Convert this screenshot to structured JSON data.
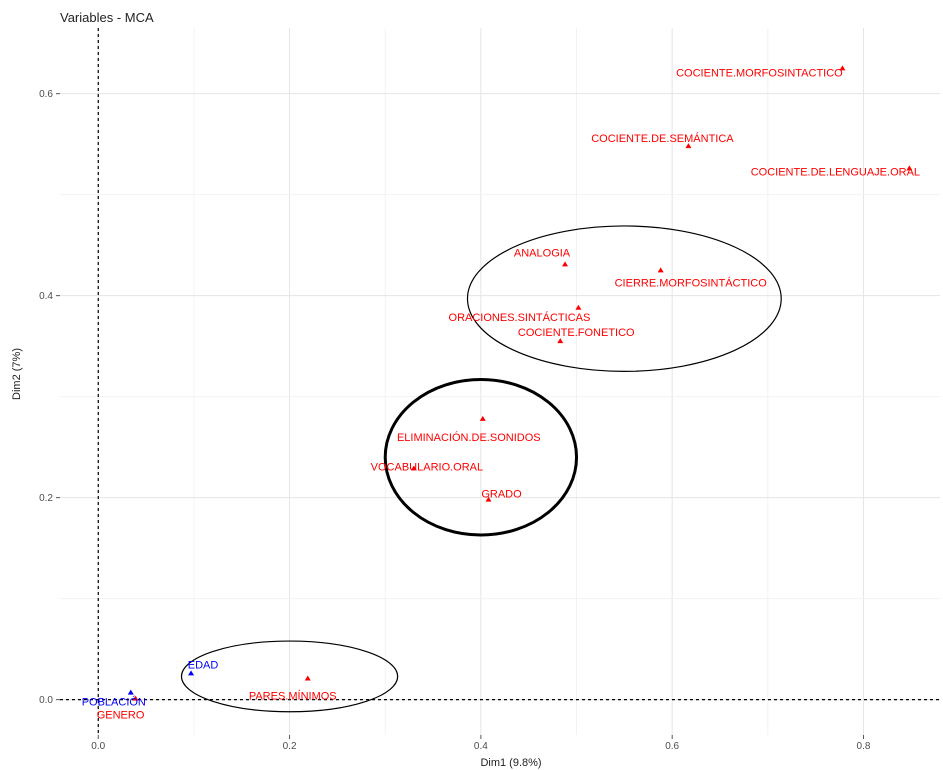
{
  "chart_data": {
    "type": "scatter",
    "title": "Variables - MCA",
    "xlabel": "Dim1 (9.8%)",
    "ylabel": "Dim2 (7%)",
    "xlim": [
      -0.04,
      0.88
    ],
    "ylim": [
      -0.035,
      0.665
    ],
    "xticks": [
      0.0,
      0.2,
      0.4,
      0.6,
      0.8
    ],
    "yticks": [
      0.0,
      0.2,
      0.4,
      0.6
    ],
    "grid": true,
    "reference_lines": {
      "x": 0,
      "y": 0,
      "style": "dashed"
    },
    "colors": {
      "active": "#ff0000",
      "supplementary": "#0000ff",
      "ellipse": "#000000"
    },
    "points": [
      {
        "label": "COCIENTE.MORFOSINTACTICO",
        "x": 0.778,
        "y": 0.625,
        "color": "red"
      },
      {
        "label": "COCIENTE.DE.SEMÁNTICA",
        "x": 0.617,
        "y": 0.548,
        "color": "red"
      },
      {
        "label": "COCIENTE.DE.LENGUAJE.ORAL",
        "x": 0.848,
        "y": 0.526,
        "color": "red"
      },
      {
        "label": "ANALOGIA",
        "x": 0.488,
        "y": 0.431,
        "color": "red"
      },
      {
        "label": "CIERRE.MORFOSINTÁCTICO",
        "x": 0.588,
        "y": 0.425,
        "color": "red"
      },
      {
        "label": "ORACIONES.SINTÁCTICAS",
        "x": 0.502,
        "y": 0.388,
        "color": "red"
      },
      {
        "label": "COCIENTE.FONETICO",
        "x": 0.483,
        "y": 0.355,
        "color": "red"
      },
      {
        "label": "ELIMINACIÓN.DE.SONIDOS",
        "x": 0.402,
        "y": 0.278,
        "color": "red"
      },
      {
        "label": "VOCABULARIO.ORAL",
        "x": 0.33,
        "y": 0.229,
        "color": "red"
      },
      {
        "label": "GRADO",
        "x": 0.408,
        "y": 0.198,
        "color": "red"
      },
      {
        "label": "PARES.MÍNIMOS",
        "x": 0.219,
        "y": 0.021,
        "color": "red"
      },
      {
        "label": "EDAD",
        "x": 0.097,
        "y": 0.026,
        "color": "blue"
      },
      {
        "label": "POBLACIÓN",
        "x": 0.034,
        "y": 0.007,
        "color": "blue"
      },
      {
        "label": "GENERO",
        "x": 0.039,
        "y": 0.001,
        "color": "red"
      }
    ],
    "ellipses": [
      {
        "cx": 0.55,
        "cy": 0.397,
        "rx": 0.164,
        "ry": 0.072,
        "weight": "normal"
      },
      {
        "cx": 0.4,
        "cy": 0.24,
        "rx": 0.1,
        "ry": 0.077,
        "weight": "bold"
      },
      {
        "cx": 0.2,
        "cy": 0.023,
        "rx": 0.113,
        "ry": 0.035,
        "weight": "normal"
      }
    ]
  }
}
